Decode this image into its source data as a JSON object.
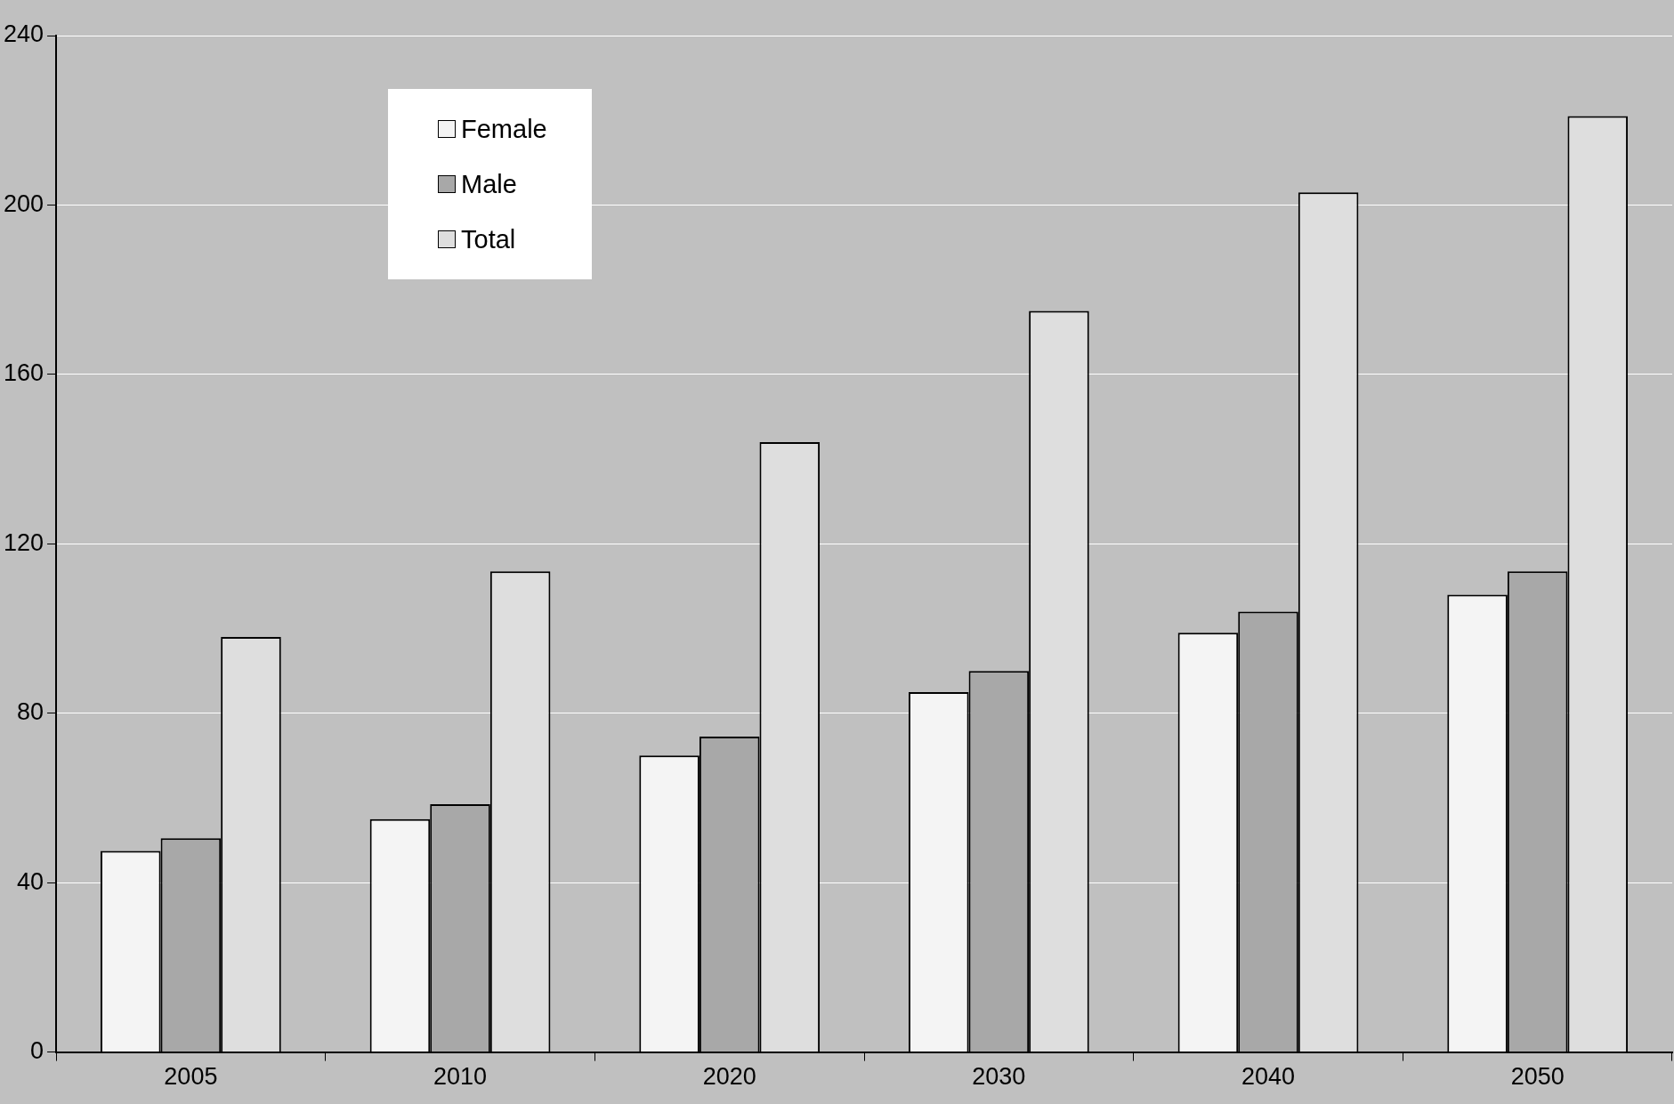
{
  "chart_data": {
    "type": "bar",
    "categories": [
      "2005",
      "2010",
      "2020",
      "2030",
      "2040",
      "2050"
    ],
    "series": [
      {
        "name": "Female",
        "color": "#f4f4f4",
        "values": [
          47.5,
          55,
          70,
          85,
          99,
          108
        ]
      },
      {
        "name": "Male",
        "color": "#a8a8a8",
        "values": [
          50.5,
          58.5,
          74.5,
          90,
          104,
          113.5
        ]
      },
      {
        "name": "Total",
        "color": "#dedede",
        "values": [
          98,
          113.5,
          144,
          175,
          203,
          221
        ]
      }
    ],
    "ylim": [
      0,
      240
    ],
    "yticks": [
      0,
      40,
      80,
      120,
      160,
      200,
      240
    ],
    "grid": "y",
    "legend": "top left"
  }
}
